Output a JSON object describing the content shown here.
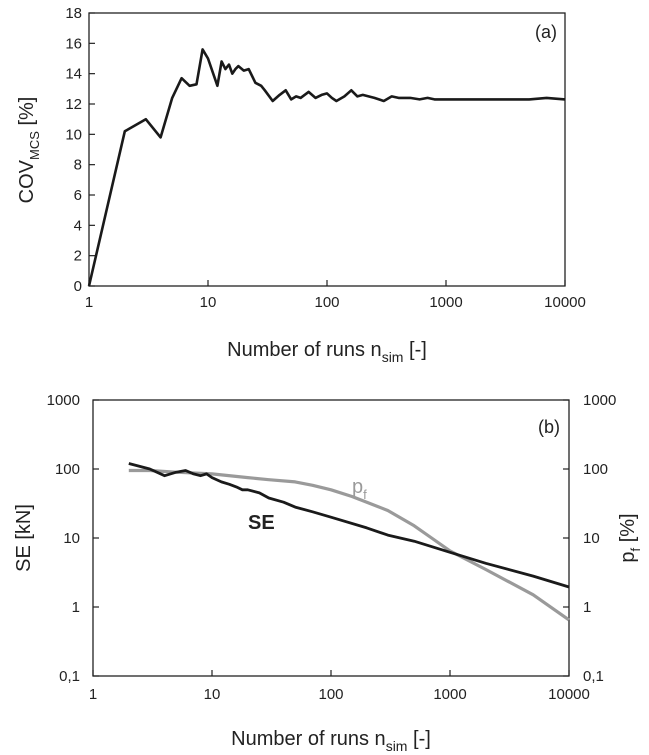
{
  "colors": {
    "black_series": "#1a1a1a",
    "grey_series": "#9a9a9a"
  },
  "chart_data": [
    {
      "type": "line",
      "panel_label": "(a)",
      "xscale": "log",
      "xlim": [
        1,
        10000
      ],
      "ylim": [
        0,
        18
      ],
      "grid": false,
      "x_ticks": [
        "1",
        "10",
        "100",
        "1000",
        "10000"
      ],
      "y_ticks": [
        "0",
        "2",
        "4",
        "6",
        "8",
        "10",
        "12",
        "14",
        "16",
        "18"
      ],
      "xlabel": "Number of runs n",
      "xlabel_sub": "sim",
      "xlabel_end": " [-]",
      "ylabel": "COV",
      "ylabel_sub": "MCS",
      "ylabel_end": " [%]",
      "series": [
        {
          "color": "#1a1a1a",
          "x": [
            1,
            2,
            3,
            4,
            5,
            6,
            7,
            8,
            9,
            10,
            12,
            13,
            14,
            15,
            16,
            17,
            18,
            20,
            22,
            25,
            28,
            30,
            35,
            40,
            45,
            50,
            55,
            60,
            70,
            80,
            90,
            100,
            110,
            120,
            140,
            160,
            180,
            200,
            250,
            300,
            350,
            400,
            500,
            600,
            700,
            800,
            1000,
            1500,
            2000,
            3000,
            5000,
            7000,
            10000
          ],
          "y": [
            0,
            10.2,
            11,
            9.8,
            12.4,
            13.7,
            13.2,
            13.3,
            15.6,
            15,
            13.2,
            14.8,
            14.3,
            14.6,
            14,
            14.3,
            14.5,
            14.2,
            14.3,
            13.4,
            13.2,
            12.9,
            12.2,
            12.6,
            12.9,
            12.3,
            12.5,
            12.4,
            12.8,
            12.4,
            12.6,
            12.7,
            12.4,
            12.2,
            12.5,
            12.9,
            12.5,
            12.6,
            12.4,
            12.2,
            12.5,
            12.4,
            12.4,
            12.3,
            12.4,
            12.3,
            12.3,
            12.3,
            12.3,
            12.3,
            12.3,
            12.4,
            12.3
          ]
        }
      ]
    },
    {
      "type": "line",
      "panel_label": "(b)",
      "xscale": "log",
      "yscale": "log",
      "xlim": [
        1,
        10000
      ],
      "ylim": [
        0.1,
        1000
      ],
      "grid": false,
      "x_ticks": [
        "1",
        "10",
        "100",
        "1000",
        "10000"
      ],
      "y_ticks": [
        "0,1",
        "1",
        "10",
        "100",
        "1000"
      ],
      "y2_ticks": [
        "0,1",
        "1",
        "10",
        "100",
        "1000"
      ],
      "xlabel": "Number of runs n",
      "xlabel_sub": "sim",
      "xlabel_end": " [-]",
      "ylabel": "SE [kN]",
      "y2label": "p",
      "y2label_sub": "f",
      "y2label_end": " [%]",
      "series": [
        {
          "name": "SE",
          "color": "#1a1a1a",
          "x": [
            2,
            3,
            4,
            5,
            6,
            7,
            8,
            9,
            10,
            12,
            14,
            16,
            18,
            20,
            25,
            30,
            40,
            50,
            70,
            100,
            200,
            300,
            500,
            1000,
            2000,
            5000,
            10000
          ],
          "y": [
            120,
            100,
            80,
            90,
            95,
            85,
            80,
            85,
            75,
            65,
            60,
            55,
            50,
            50,
            45,
            38,
            33,
            28,
            24,
            20,
            14,
            11,
            9,
            6.2,
            4.3,
            2.8,
            1.95
          ]
        },
        {
          "name": "p",
          "name_sub": "f",
          "color": "#9a9a9a",
          "x": [
            2,
            3,
            5,
            10,
            20,
            30,
            50,
            70,
            100,
            150,
            200,
            300,
            500,
            700,
            1000,
            2000,
            5000,
            10000
          ],
          "y": [
            95,
            95,
            90,
            85,
            75,
            70,
            65,
            58,
            50,
            40,
            33,
            25,
            15,
            10,
            6.5,
            3.5,
            1.5,
            0.65
          ]
        }
      ]
    }
  ]
}
